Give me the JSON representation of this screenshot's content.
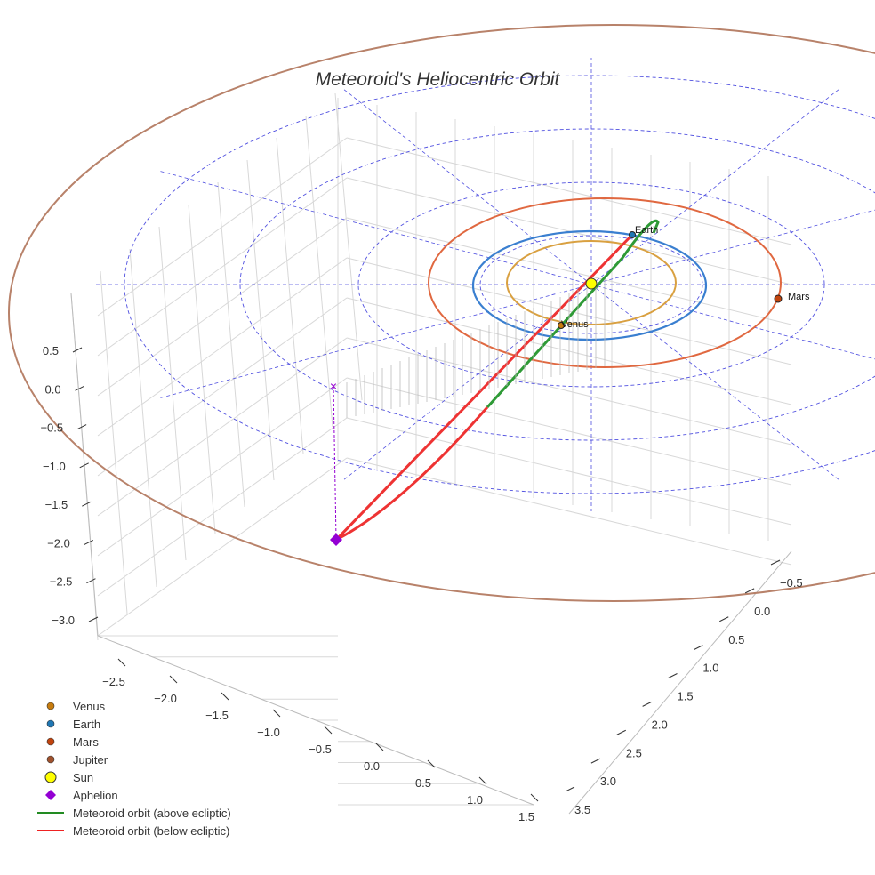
{
  "chart_data": {
    "type": "line",
    "projection": "3d",
    "title": "Meteoroid's Heliocentric Orbit",
    "x_ticks": [
      "−2.5",
      "−2.0",
      "−1.5",
      "−1.0",
      "−0.5",
      "0.0",
      "0.5",
      "1.0",
      "1.5"
    ],
    "y_ticks": [
      "−0.5",
      "0.0",
      "0.5",
      "1.0",
      "1.5",
      "2.0",
      "2.5",
      "3.0",
      "3.5"
    ],
    "z_ticks": [
      "0.5",
      "0.0",
      "−0.5",
      "−1.0",
      "−1.5",
      "−2.0",
      "−2.5",
      "−3.0"
    ],
    "xlim": [
      -2.8,
      1.6
    ],
    "ylim": [
      -0.8,
      3.6
    ],
    "zlim": [
      -3.2,
      0.8
    ],
    "grid": true,
    "legend_position": "bottom-left",
    "legend": [
      {
        "label": "Venus",
        "marker": "circle",
        "color": "#c77c0e"
      },
      {
        "label": "Earth",
        "marker": "circle",
        "color": "#1f77b4"
      },
      {
        "label": "Mars",
        "marker": "circle",
        "color": "#c1440e"
      },
      {
        "label": "Jupiter",
        "marker": "circle",
        "color": "#a0522d"
      },
      {
        "label": "Sun",
        "marker": "big-circle",
        "color": "#ffff00"
      },
      {
        "label": "Aphelion",
        "marker": "diamond",
        "color": "#9400d3"
      },
      {
        "label": "Meteoroid orbit (above ecliptic)",
        "marker": "line",
        "color": "#228b22"
      },
      {
        "label": "Meteoroid orbit (below ecliptic)",
        "marker": "line",
        "color": "#ee2222"
      }
    ],
    "planet_labels": [
      "Earth",
      "Mars",
      "Venus"
    ],
    "orbit_colors": {
      "venus": "#d9a040",
      "earth": "#3a7fd0",
      "mars": "#e06840",
      "jupiter": "#b8826a",
      "grid": "#5050e0"
    }
  }
}
